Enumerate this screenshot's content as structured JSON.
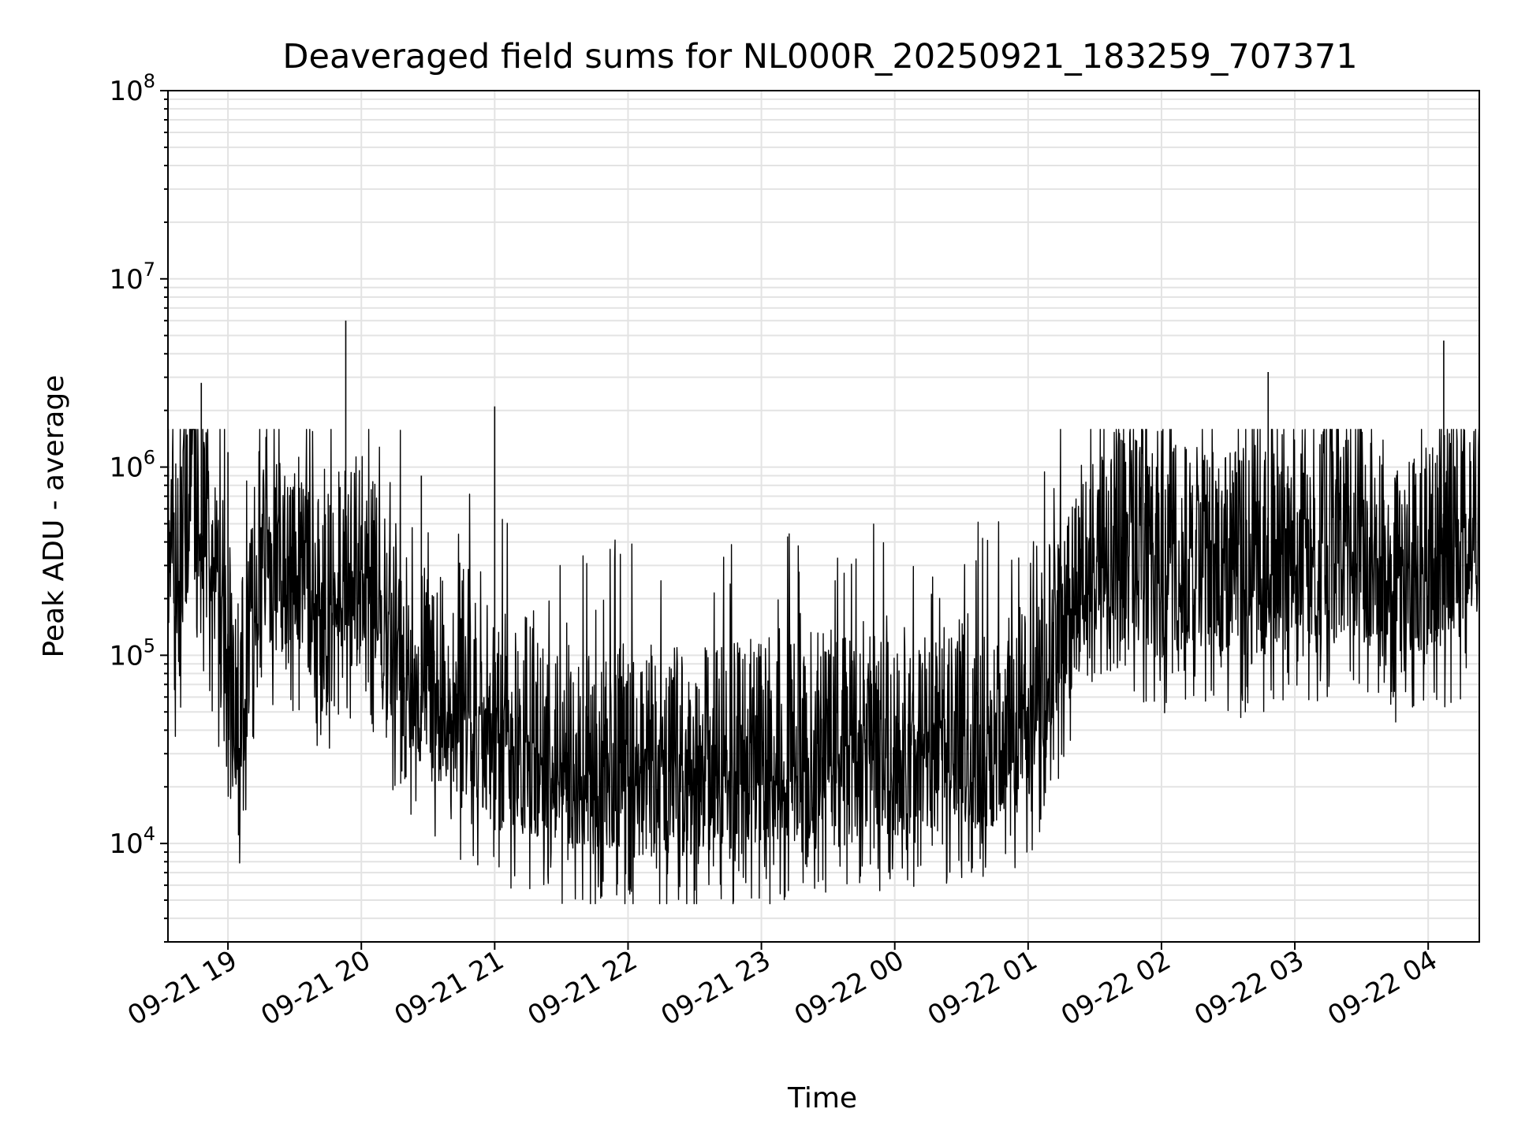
{
  "chart_data": {
    "type": "line",
    "title": "Deaveraged field sums for NL000R_20250921_183259_707371",
    "xlabel": "Time",
    "ylabel": "Peak ADU - average",
    "x_axis": {
      "kind": "time",
      "range": [
        "2025-09-21T18:33",
        "2025-09-22T04:23"
      ],
      "ticks": [
        {
          "time": "2025-09-21T19:00",
          "label": "09-21 19"
        },
        {
          "time": "2025-09-21T20:00",
          "label": "09-21 20"
        },
        {
          "time": "2025-09-21T21:00",
          "label": "09-21 21"
        },
        {
          "time": "2025-09-21T22:00",
          "label": "09-21 22"
        },
        {
          "time": "2025-09-21T23:00",
          "label": "09-21 23"
        },
        {
          "time": "2025-09-22T00:00",
          "label": "09-22 00"
        },
        {
          "time": "2025-09-22T01:00",
          "label": "09-22 01"
        },
        {
          "time": "2025-09-22T02:00",
          "label": "09-22 02"
        },
        {
          "time": "2025-09-22T03:00",
          "label": "09-22 03"
        },
        {
          "time": "2025-09-22T04:00",
          "label": "09-22 04"
        }
      ]
    },
    "y_axis": {
      "scale": "log",
      "range": [
        3000,
        100000000
      ],
      "major_ticks": [
        {
          "value": 10000,
          "base": "10",
          "exp": "4"
        },
        {
          "value": 100000,
          "base": "10",
          "exp": "5"
        },
        {
          "value": 1000000,
          "base": "10",
          "exp": "6"
        },
        {
          "value": 10000000,
          "base": "10",
          "exp": "7"
        },
        {
          "value": 100000000,
          "base": "10",
          "exp": "8"
        }
      ]
    },
    "grid": "on (major and minor)",
    "series": [
      {
        "color": "#000000",
        "points": [
          [
            "2025-09-21T18:33",
            300000
          ],
          [
            "2025-09-21T18:36",
            100000
          ],
          [
            "2025-09-21T18:40",
            250000
          ],
          [
            "2025-09-21T18:45",
            400000
          ],
          [
            "2025-09-21T18:48",
            2800000
          ],
          [
            "2025-09-21T18:52",
            200000
          ],
          [
            "2025-09-21T18:58",
            80000
          ],
          [
            "2025-09-21T19:00",
            1200000
          ],
          [
            "2025-09-21T19:05",
            25000
          ],
          [
            "2025-09-21T19:15",
            200000
          ],
          [
            "2025-09-21T19:30",
            150000
          ],
          [
            "2025-09-21T19:45",
            100000
          ],
          [
            "2025-09-21T19:53",
            6000000
          ],
          [
            "2025-09-21T20:00",
            200000
          ],
          [
            "2025-09-21T20:15",
            60000
          ],
          [
            "2025-09-21T20:27",
            900000
          ],
          [
            "2025-09-21T20:40",
            30000
          ],
          [
            "2025-09-21T21:00",
            2100000
          ],
          [
            "2025-09-21T21:15",
            18000
          ],
          [
            "2025-09-21T21:30",
            16000
          ],
          [
            "2025-09-21T21:45",
            15000
          ],
          [
            "2025-09-21T22:00",
            15000
          ],
          [
            "2025-09-21T22:15",
            14000
          ],
          [
            "2025-09-21T22:30",
            14000
          ],
          [
            "2025-09-21T22:45",
            15000
          ],
          [
            "2025-09-21T23:00",
            16000
          ],
          [
            "2025-09-21T23:15",
            17000
          ],
          [
            "2025-09-21T23:30",
            18000
          ],
          [
            "2025-09-21T23:45",
            20000
          ],
          [
            "2025-09-22T00:00",
            18000
          ],
          [
            "2025-09-22T00:15",
            18000
          ],
          [
            "2025-09-22T00:30",
            20000
          ],
          [
            "2025-09-22T00:45",
            20000
          ],
          [
            "2025-09-22T01:00",
            25000
          ],
          [
            "2025-09-22T01:15",
            80000
          ],
          [
            "2025-09-22T01:30",
            200000
          ],
          [
            "2025-09-22T01:45",
            250000
          ],
          [
            "2025-09-22T02:00",
            150000
          ],
          [
            "2025-09-22T02:15",
            200000
          ],
          [
            "2025-09-22T02:30",
            150000
          ],
          [
            "2025-09-22T02:48",
            3200000
          ],
          [
            "2025-09-22T03:00",
            200000
          ],
          [
            "2025-09-22T03:15",
            200000
          ],
          [
            "2025-09-22T03:30",
            200000
          ],
          [
            "2025-09-22T03:45",
            150000
          ],
          [
            "2025-09-22T04:07",
            4700000
          ],
          [
            "2025-09-22T04:15",
            200000
          ],
          [
            "2025-09-22T04:23",
            400000
          ]
        ]
      }
    ]
  }
}
